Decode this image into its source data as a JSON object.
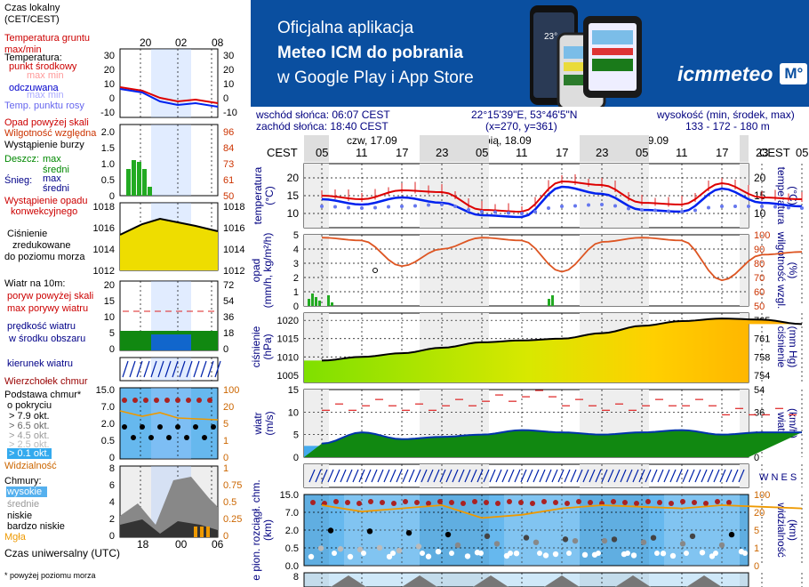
{
  "banner": {
    "line1": "Oficjalna aplikacja",
    "line2": "Meteo ICM do pobrania",
    "line3": "w Google Play i App Store",
    "brand": "icmmeteo",
    "brand_badge": "M°",
    "phone_reading": "23°"
  },
  "info": {
    "sunrise": "wschód słońca: 06:07 CEST",
    "sunset": "zachód słońca: 18:40 CEST",
    "coords": "22°15'39\"E, 53°46'5\"N",
    "grid": "(x=270,  y=361)",
    "height_label": "wysokość (min, środek, max)",
    "height_values": "133 - 172 - 180 m"
  },
  "timeline": {
    "tz": "CEST",
    "days": [
      "czw, 17.09",
      "pią, 18.09",
      "sob, 19.09"
    ],
    "hours": [
      "05",
      "11",
      "17",
      "23",
      "05",
      "11",
      "17",
      "23",
      "05",
      "11",
      "17",
      "23",
      "05"
    ]
  },
  "legend": {
    "tz_label": "Czas lokalny\n(CET/CEST)",
    "top_hours": [
      "20",
      "02",
      "08"
    ],
    "bottom_hours": [
      "18",
      "00",
      "06"
    ],
    "utc_label": "Czas uniwersalny (UTC)",
    "footnote": "* powyżej poziomu morza",
    "temp_lines": [
      "Temperatura gruntu",
      "max/min",
      "Temperatura:",
      "punkt środkowy",
      "max min",
      "odczuwana",
      "max min",
      "Temp. punktu rosy"
    ],
    "temp_ticks": [
      "30",
      "20",
      "10",
      "0",
      "-10"
    ],
    "rain_lines": [
      "Opad powyżej skali",
      "Wilgotność względna",
      "Wystąpienie burzy",
      "Deszcz:",
      "max",
      "średni",
      "Śnieg:",
      "max",
      "średni",
      "Wystąpienie opadu",
      "konwekcyjnego"
    ],
    "rain_ticks_l": [
      "2.0",
      "1.5",
      "1.0",
      "0.5",
      "0"
    ],
    "rain_ticks_r": [
      "96",
      "84",
      "73",
      "61",
      "50"
    ],
    "press_lines": [
      "Ciśnienie",
      "zredukowane",
      "do poziomu morza"
    ],
    "press_ticks": [
      "1018",
      "1016",
      "1014",
      "1012"
    ],
    "wind_lines": [
      "Wiatr na 10m:",
      "poryw powyżej skali",
      "max porywy wiatru",
      "prędkość wiatru",
      "w środku obszaru"
    ],
    "wind_ticks_l": [
      "20",
      "15",
      "10",
      "5",
      "0"
    ],
    "wind_ticks_r": [
      "72",
      "54",
      "36",
      "18",
      "0"
    ],
    "dir_label": "kierunek wiatru",
    "cloudbase_lines": [
      "Wierzchołek chmur",
      "Podstawa chmur*",
      "o pokryciu",
      "> 7.9 okt.",
      "> 6.5 okt.",
      "> 4.5 okt.",
      "> 2.5 okt.",
      "> 0.1 okt.",
      "Widzialność"
    ],
    "cb_ticks_l": [
      "15.0",
      "7.0",
      "2.0",
      "0.5",
      "0"
    ],
    "cb_ticks_r": [
      "100",
      "20",
      "5",
      "1",
      "0"
    ],
    "clouds_lines": [
      "Chmury:",
      "wysokie",
      "średnie",
      "niskie",
      "bardzo niskie",
      "Mgła"
    ],
    "cl_ticks_l": [
      "8",
      "6",
      "4",
      "2",
      "0"
    ],
    "cl_ticks_r": [
      "1",
      "0.75",
      "0.5",
      "0.25",
      "0"
    ]
  },
  "panels": {
    "temp": {
      "ylabel_l": "temperatura\n(°C)",
      "ylabel_r": "(°C)\ntemperatura",
      "ticks": [
        "20",
        "15",
        "10"
      ]
    },
    "rain": {
      "ylabel_l": "opad\n(mm/h, kg/m²/h)",
      "ylabel_r": "(%)\nwilgotność wzgl.",
      "ticks_l": [
        "5",
        "4",
        "3",
        "2",
        "1",
        "0"
      ],
      "ticks_r": [
        "100",
        "90",
        "80",
        "70",
        "60",
        "50"
      ]
    },
    "press": {
      "ylabel_l": "ciśnienie\n(hPa)",
      "ylabel_r": "(mm Hg)\nciśnienie",
      "ticks_l": [
        "1020",
        "1015",
        "1010",
        "1005"
      ],
      "ticks_r": [
        "765",
        "761",
        "758",
        "754"
      ]
    },
    "wind": {
      "ylabel_l": "wiatr\n(m/s)",
      "ylabel_r": "(km/h)\nwiatr",
      "ticks_l": [
        "15",
        "10",
        "5",
        "0"
      ],
      "ticks_r": [
        "54",
        "36",
        "18",
        "0"
      ]
    },
    "dir": {
      "compass": "W N E S"
    },
    "cloudbase": {
      "ylabel_l": "e pion. rozciągł. chm.\n(km)",
      "ylabel_r": "(km)\nwidzialność",
      "ticks_l": [
        "15.0",
        "7.0",
        "2.0",
        "0.5",
        "0.0"
      ],
      "ticks_r": [
        "100",
        "20",
        "5",
        "1",
        "0"
      ]
    },
    "clouds": {
      "ticks_l": [
        "8"
      ]
    }
  },
  "colors": {
    "banner_bg": "#0a4fa0",
    "temp_red": "#dd0000",
    "temp_blue": "#0022ee",
    "dew": "#6677ee",
    "humidity": "#dd5522",
    "rain_green": "#22aa22",
    "pressure_fill": "#eedd00",
    "wind_green": "#118811",
    "wind_blue": "#1166cc",
    "cloud_bg": "#66b8ee"
  },
  "chart_data": [
    {
      "type": "line",
      "title": "temperatura",
      "x": [
        "czw 05",
        "11",
        "17",
        "23",
        "pią 05",
        "11",
        "17",
        "23",
        "sob 05",
        "11",
        "17",
        "23",
        "05"
      ],
      "series": [
        {
          "name": "punkt środkowy",
          "values": [
            15.0,
            14.0,
            16.5,
            16.0,
            11.0,
            10.5,
            19.0,
            18.0,
            13.0,
            12.5,
            18.5,
            14.5,
            14.0
          ]
        },
        {
          "name": "odczuwana",
          "values": [
            14.0,
            12.5,
            14.5,
            13.0,
            9.5,
            9.0,
            17.5,
            15.5,
            11.0,
            10.5,
            17.0,
            13.0,
            12.0
          ]
        },
        {
          "name": "Temp. punktu rosy",
          "values": [
            12.0,
            11.5,
            12.0,
            12.5,
            10.5,
            10.0,
            12.0,
            12.5,
            11.0,
            10.5,
            12.0,
            12.0,
            11.5
          ]
        }
      ],
      "ylim": [
        6,
        24
      ]
    },
    {
      "type": "line",
      "title": "wilgotność wzgl.",
      "x": [
        "czw 05",
        "11",
        "17",
        "23",
        "pią 05",
        "11",
        "17",
        "23",
        "sob 05",
        "11",
        "17",
        "23",
        "05"
      ],
      "series": [
        {
          "name": "Wilgotność względna",
          "values": [
            98,
            96,
            78,
            90,
            98,
            96,
            74,
            95,
            98,
            96,
            68,
            86,
            88
          ]
        }
      ],
      "ylim": [
        50,
        100
      ]
    },
    {
      "type": "area",
      "title": "ciśnienie",
      "x": [
        "czw 05",
        "11",
        "17",
        "23",
        "pią 05",
        "11",
        "17",
        "23",
        "sob 05",
        "11",
        "17",
        "23",
        "05"
      ],
      "series": [
        {
          "name": "ciśnienie",
          "values": [
            1009.0,
            1010.0,
            1011.0,
            1012.5,
            1014.0,
            1014.5,
            1015.0,
            1016.5,
            1018.5,
            1019.8,
            1020.5,
            1020.2,
            1019.0
          ]
        }
      ],
      "ylim": [
        1003,
        1022
      ]
    },
    {
      "type": "area",
      "title": "wiatr",
      "x": [
        "czw 05",
        "11",
        "17",
        "23",
        "pią 05",
        "11",
        "17",
        "23",
        "sob 05",
        "11",
        "17",
        "23",
        "05"
      ],
      "series": [
        {
          "name": "prędkość wiatru",
          "values": [
            3.0,
            5.5,
            4.0,
            4.5,
            5.0,
            6.0,
            5.5,
            5.0,
            5.5,
            6.0,
            5.0,
            5.5,
            5.5
          ]
        },
        {
          "name": "max porywy wiatru",
          "values": [
            11,
            12,
            11,
            12,
            13,
            14,
            12,
            11,
            12,
            12,
            10,
            10,
            10
          ]
        }
      ],
      "ylim": [
        0,
        15
      ]
    }
  ]
}
